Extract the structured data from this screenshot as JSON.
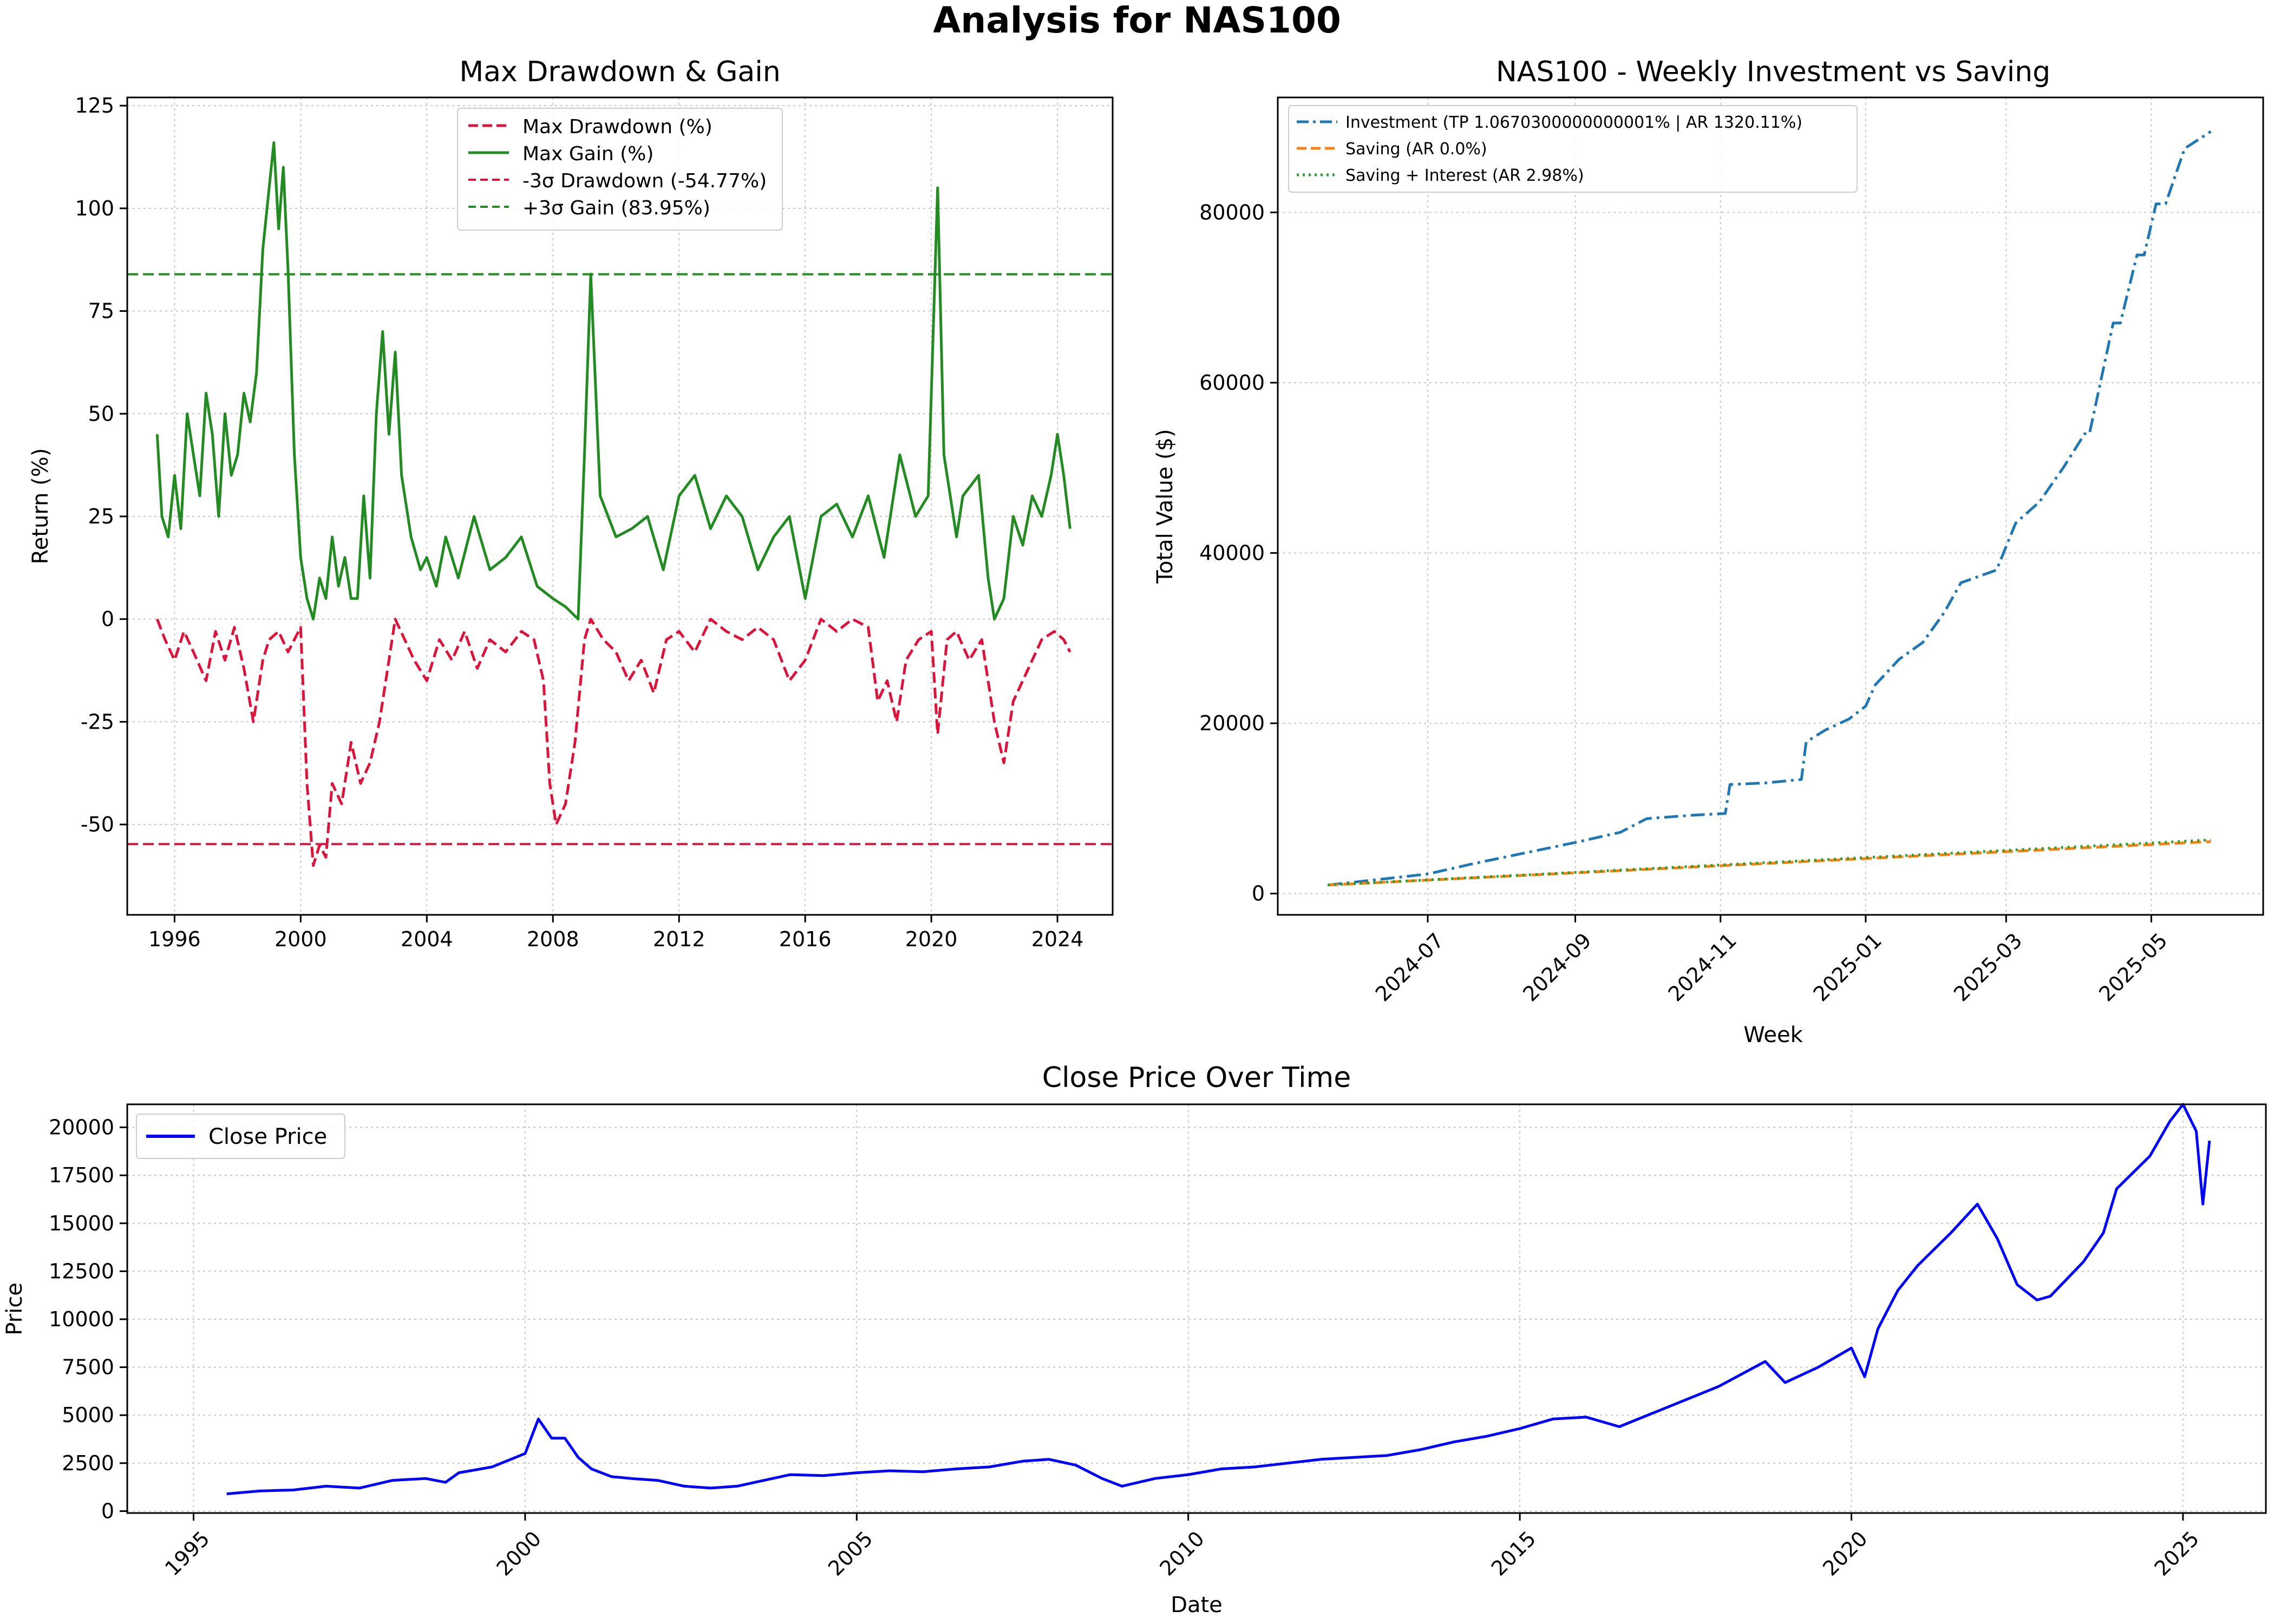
{
  "suptitle": "Analysis for NAS100",
  "colors": {
    "drawdown": "#dc143c",
    "gain": "#228b22",
    "investment": "#1f77b4",
    "saving": "#ff7f0e",
    "saving_interest": "#2ca02c",
    "close": "#0000ff",
    "grid": "#c8c8c8"
  },
  "chart_data": [
    {
      "type": "line",
      "title": "Max Drawdown & Gain",
      "xlabel": "",
      "ylabel": "Return (%)",
      "xlim": [
        1994.5,
        2025.75
      ],
      "ylim": [
        -72,
        127
      ],
      "xticks": [
        1996,
        2000,
        2004,
        2008,
        2012,
        2016,
        2020,
        2024
      ],
      "yticks": [
        -50,
        -25,
        0,
        25,
        50,
        75,
        100,
        125
      ],
      "grid": true,
      "legend": "top-center",
      "legend_entries": [
        "Max Drawdown (%)",
        "Max Gain (%)",
        "-3σ Drawdown (-54.77%)",
        "+3σ Gain (83.95%)"
      ],
      "hlines": [
        {
          "name": "-3σ Drawdown (-54.77%)",
          "y": -54.77,
          "style": "dashed",
          "color": "#dc143c"
        },
        {
          "name": "+3σ Gain (83.95%)",
          "y": 83.95,
          "style": "dashed",
          "color": "#228b22"
        }
      ],
      "series": [
        {
          "name": "Max Gain (%)",
          "style": "solid",
          "color": "#228b22",
          "x": [
            1995.45,
            1995.6,
            1995.8,
            1996.0,
            1996.2,
            1996.4,
            1996.6,
            1996.8,
            1997.0,
            1997.2,
            1997.4,
            1997.6,
            1997.8,
            1998.0,
            1998.2,
            1998.4,
            1998.6,
            1998.8,
            1999.0,
            1999.15,
            1999.3,
            1999.45,
            1999.6,
            1999.8,
            2000.0,
            2000.2,
            2000.4,
            2000.6,
            2000.8,
            2001.0,
            2001.2,
            2001.4,
            2001.6,
            2001.8,
            2002.0,
            2002.2,
            2002.4,
            2002.6,
            2002.8,
            2003.0,
            2003.2,
            2003.5,
            2003.8,
            2004.0,
            2004.3,
            2004.6,
            2005.0,
            2005.5,
            2006.0,
            2006.5,
            2007.0,
            2007.5,
            2008.0,
            2008.4,
            2008.8,
            2009.0,
            2009.2,
            2009.5,
            2010.0,
            2010.5,
            2011.0,
            2011.5,
            2012.0,
            2012.5,
            2013.0,
            2013.5,
            2014.0,
            2014.5,
            2015.0,
            2015.5,
            2016.0,
            2016.5,
            2017.0,
            2017.5,
            2018.0,
            2018.5,
            2019.0,
            2019.5,
            2019.9,
            2020.2,
            2020.4,
            2020.8,
            2021.0,
            2021.5,
            2021.8,
            2022.0,
            2022.3,
            2022.6,
            2022.9,
            2023.2,
            2023.5,
            2023.8,
            2024.0,
            2024.2,
            2024.4
          ],
          "y": [
            45,
            25,
            20,
            35,
            22,
            50,
            40,
            30,
            55,
            45,
            25,
            50,
            35,
            40,
            55,
            48,
            60,
            90,
            105,
            116,
            95,
            110,
            85,
            40,
            15,
            5,
            0,
            10,
            5,
            20,
            8,
            15,
            5,
            5,
            30,
            10,
            50,
            70,
            45,
            65,
            35,
            20,
            12,
            15,
            8,
            20,
            10,
            25,
            12,
            15,
            20,
            8,
            5,
            3,
            0,
            40,
            84,
            30,
            20,
            22,
            25,
            12,
            30,
            35,
            22,
            30,
            25,
            12,
            20,
            25,
            5,
            25,
            28,
            20,
            30,
            15,
            40,
            25,
            30,
            105,
            40,
            20,
            30,
            35,
            10,
            0,
            5,
            25,
            18,
            30,
            25,
            35,
            45,
            35,
            22
          ]
        },
        {
          "name": "Max Drawdown (%)",
          "style": "dashed",
          "color": "#dc143c",
          "x": [
            1995.45,
            1995.7,
            1996.0,
            1996.3,
            1996.6,
            1997.0,
            1997.3,
            1997.6,
            1997.9,
            1998.2,
            1998.5,
            1998.8,
            1999.0,
            1999.3,
            1999.6,
            2000.0,
            2000.2,
            2000.4,
            2000.6,
            2000.8,
            2001.0,
            2001.3,
            2001.6,
            2001.9,
            2002.2,
            2002.5,
            2002.8,
            2003.0,
            2003.3,
            2003.6,
            2004.0,
            2004.4,
            2004.8,
            2005.2,
            2005.6,
            2006.0,
            2006.5,
            2007.0,
            2007.4,
            2007.7,
            2007.9,
            2008.1,
            2008.4,
            2008.7,
            2009.0,
            2009.2,
            2009.6,
            2010.0,
            2010.4,
            2010.8,
            2011.2,
            2011.6,
            2012.0,
            2012.5,
            2013.0,
            2013.5,
            2014.0,
            2014.5,
            2015.0,
            2015.5,
            2016.0,
            2016.5,
            2017.0,
            2017.5,
            2018.0,
            2018.3,
            2018.6,
            2018.9,
            2019.2,
            2019.6,
            2020.0,
            2020.2,
            2020.5,
            2020.8,
            2021.2,
            2021.6,
            2022.0,
            2022.3,
            2022.6,
            2022.9,
            2023.2,
            2023.5,
            2023.9,
            2024.2,
            2024.4
          ],
          "y": [
            0,
            -5,
            -10,
            -3,
            -8,
            -15,
            -3,
            -10,
            -2,
            -12,
            -25,
            -10,
            -5,
            -3,
            -8,
            -2,
            -40,
            -60,
            -55,
            -58,
            -40,
            -45,
            -30,
            -40,
            -35,
            -25,
            -10,
            0,
            -5,
            -10,
            -15,
            -5,
            -10,
            -3,
            -12,
            -5,
            -8,
            -3,
            -5,
            -15,
            -40,
            -50,
            -45,
            -30,
            -5,
            0,
            -5,
            -8,
            -15,
            -10,
            -18,
            -5,
            -3,
            -8,
            0,
            -3,
            -5,
            -2,
            -5,
            -15,
            -10,
            0,
            -3,
            0,
            -2,
            -20,
            -15,
            -25,
            -10,
            -5,
            -3,
            -28,
            -5,
            -3,
            -10,
            -5,
            -25,
            -35,
            -20,
            -15,
            -10,
            -5,
            -3,
            -5,
            -8
          ]
        }
      ]
    },
    {
      "type": "line",
      "title": "NAS100 - Weekly Investment vs Saving",
      "xlabel": "Week",
      "ylabel": "Total Value ($)",
      "xlim": [
        "2024-04-29",
        "2025-06-17"
      ],
      "ylim": [
        -2500,
        93500
      ],
      "xticks": [
        "2024-07",
        "2024-09",
        "2024-11",
        "2025-01",
        "2025-03",
        "2025-05"
      ],
      "yticks": [
        0,
        20000,
        40000,
        60000,
        80000
      ],
      "grid": true,
      "legend": "top-left",
      "series": [
        {
          "name": "Investment (TP 1.0670300000000001% | AR 1320.11%)",
          "style": "dashdot",
          "color": "#1f77b4",
          "x": [
            "2024-05-20",
            "2024-06-15",
            "2024-07-01",
            "2024-07-20",
            "2024-08-01",
            "2024-08-20",
            "2024-09-01",
            "2024-09-20",
            "2024-10-01",
            "2024-10-20",
            "2024-11-03",
            "2024-11-05",
            "2024-11-20",
            "2024-12-05",
            "2024-12-07",
            "2024-12-15",
            "2024-12-25",
            "2025-01-01",
            "2025-01-05",
            "2025-01-15",
            "2025-01-25",
            "2025-02-03",
            "2025-02-10",
            "2025-02-25",
            "2025-03-05",
            "2025-03-15",
            "2025-03-25",
            "2025-04-03",
            "2025-04-05",
            "2025-04-15",
            "2025-04-18",
            "2025-04-25",
            "2025-04-28",
            "2025-05-03",
            "2025-05-07",
            "2025-05-15",
            "2025-05-26"
          ],
          "y": [
            1000,
            1800,
            2300,
            3500,
            4200,
            5300,
            6000,
            7200,
            8800,
            9200,
            9400,
            12800,
            13000,
            13400,
            17800,
            19200,
            20500,
            22000,
            24500,
            27500,
            29500,
            33000,
            36500,
            38000,
            43500,
            46000,
            50000,
            54000,
            54000,
            67000,
            67000,
            75000,
            75000,
            81000,
            81000,
            87500,
            89500
          ]
        },
        {
          "name": "Saving (AR 0.0%)",
          "style": "dashed",
          "color": "#ff7f0e",
          "x": [
            "2024-05-20",
            "2025-05-26"
          ],
          "y": [
            1000,
            6100
          ]
        },
        {
          "name": "Saving + Interest (AR 2.98%)",
          "style": "dotted",
          "color": "#2ca02c",
          "x": [
            "2024-05-20",
            "2025-05-26"
          ],
          "y": [
            1000,
            6300
          ]
        }
      ]
    },
    {
      "type": "line",
      "title": "Close Price Over Time",
      "xlabel": "Date",
      "ylabel": "Price",
      "xlim": [
        1994.0,
        2026.25
      ],
      "ylim": [
        -100,
        21200
      ],
      "xticks": [
        1995,
        2000,
        2005,
        2010,
        2015,
        2020,
        2025
      ],
      "yticks": [
        0,
        2500,
        5000,
        7500,
        10000,
        12500,
        15000,
        17500,
        20000
      ],
      "grid": true,
      "legend": "top-left",
      "series": [
        {
          "name": "Close Price",
          "style": "solid",
          "color": "#0000ff",
          "x": [
            1995.5,
            1996.0,
            1996.5,
            1997.0,
            1997.5,
            1998.0,
            1998.5,
            1998.8,
            1999.0,
            1999.5,
            2000.0,
            2000.2,
            2000.4,
            2000.6,
            2000.8,
            2001.0,
            2001.3,
            2001.6,
            2002.0,
            2002.4,
            2002.8,
            2003.2,
            2003.6,
            2004.0,
            2004.5,
            2005.0,
            2005.5,
            2006.0,
            2006.5,
            2007.0,
            2007.5,
            2007.9,
            2008.3,
            2008.7,
            2009.0,
            2009.5,
            2010.0,
            2010.5,
            2011.0,
            2011.5,
            2012.0,
            2012.5,
            2013.0,
            2013.5,
            2014.0,
            2014.5,
            2015.0,
            2015.5,
            2016.0,
            2016.5,
            2017.0,
            2017.5,
            2018.0,
            2018.7,
            2019.0,
            2019.5,
            2020.0,
            2020.2,
            2020.4,
            2020.7,
            2021.0,
            2021.5,
            2021.9,
            2022.2,
            2022.5,
            2022.8,
            2023.0,
            2023.5,
            2023.8,
            2024.0,
            2024.5,
            2024.8,
            2025.0,
            2025.2,
            2025.3,
            2025.4
          ],
          "y": [
            900,
            1050,
            1100,
            1300,
            1200,
            1600,
            1700,
            1500,
            2000,
            2300,
            3000,
            4800,
            3800,
            3800,
            2800,
            2200,
            1800,
            1700,
            1600,
            1300,
            1200,
            1300,
            1600,
            1900,
            1850,
            2000,
            2100,
            2050,
            2200,
            2300,
            2600,
            2700,
            2400,
            1700,
            1300,
            1700,
            1900,
            2200,
            2300,
            2500,
            2700,
            2800,
            2900,
            3200,
            3600,
            3900,
            4300,
            4800,
            4900,
            4400,
            5100,
            5800,
            6500,
            7800,
            6700,
            7500,
            8500,
            7000,
            9500,
            11500,
            12800,
            14500,
            16000,
            14200,
            11800,
            11000,
            11200,
            13000,
            14500,
            16800,
            18500,
            20300,
            21200,
            19800,
            16000,
            19300
          ]
        }
      ]
    }
  ]
}
